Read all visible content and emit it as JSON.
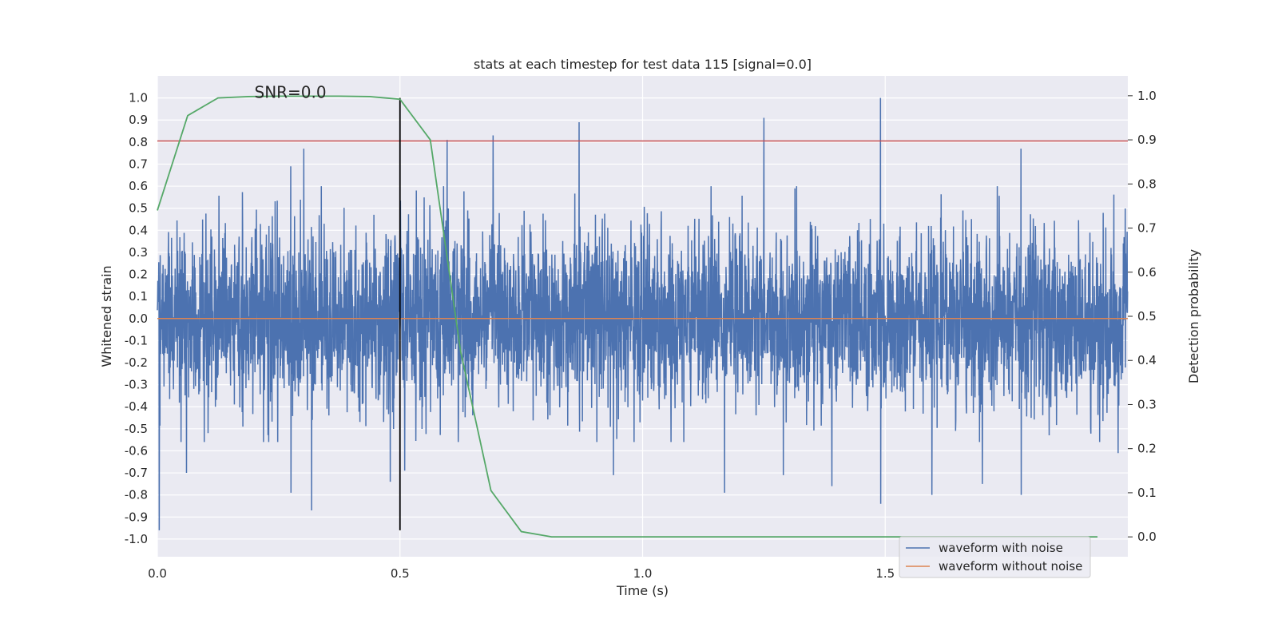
{
  "chart_data": {
    "type": "line",
    "title": "stats at each timestep for test data 115 [signal=0.0]",
    "xlabel": "Time (s)",
    "ylabel": "Whitened strain",
    "ylabel_right": "Detection probability",
    "xlim": [
      0.0,
      2.0
    ],
    "ylim": [
      -1.08,
      1.1
    ],
    "ylim_right": [
      -0.045,
      1.045
    ],
    "x_ticks": [
      0.0,
      0.5,
      1.0,
      1.5
    ],
    "x_tick_labels": [
      "0.0",
      "0.5",
      "1.0",
      "1.5"
    ],
    "y_ticks": [
      1.0,
      0.9,
      0.8,
      0.7,
      0.6,
      0.5,
      0.4,
      0.3,
      0.2,
      0.1,
      0.0,
      -0.1,
      -0.2,
      -0.3,
      -0.4,
      -0.5,
      -0.6,
      -0.7,
      -0.8,
      -0.9,
      -1.0
    ],
    "y_tick_labels": [
      "1.0",
      "0.9",
      "0.8",
      "0.7",
      "0.6",
      "0.5",
      "0.4",
      "0.3",
      "0.2",
      "0.1",
      "0.0",
      "-0.1",
      "-0.2",
      "-0.3",
      "-0.4",
      "-0.5",
      "-0.6",
      "-0.7",
      "-0.8",
      "-0.9",
      "-1.0"
    ],
    "y_ticks_right": [
      1.0,
      0.9,
      0.8,
      0.7,
      0.6,
      0.5,
      0.4,
      0.3,
      0.2,
      0.1,
      0.0
    ],
    "y_tick_labels_right": [
      "1.0",
      "0.9",
      "0.8",
      "0.7",
      "0.6",
      "0.5",
      "0.4",
      "0.3",
      "0.2",
      "0.1",
      "0.0"
    ],
    "grid": true,
    "legend_position": "bottom-right",
    "annotation": {
      "text": "SNR=0.0",
      "x": 0.2,
      "y": 1.0
    },
    "series": [
      {
        "name": "waveform with noise",
        "axis": "left",
        "color": "#4c72b0",
        "generation": {
          "sample_rate": 2048,
          "duration": 2.0,
          "noise_amplitude": 0.2,
          "seed": 115
        },
        "peaks": [
          {
            "x": 0.004,
            "y": -0.96
          },
          {
            "x": 0.06,
            "y": -0.7
          },
          {
            "x": 0.275,
            "y": 0.69
          },
          {
            "x": 0.275,
            "y": -0.79
          },
          {
            "x": 0.302,
            "y": 0.77
          },
          {
            "x": 0.318,
            "y": -0.87
          },
          {
            "x": 0.48,
            "y": -0.74
          },
          {
            "x": 0.51,
            "y": -0.69
          },
          {
            "x": 0.597,
            "y": 0.81
          },
          {
            "x": 0.692,
            "y": 0.83
          },
          {
            "x": 0.869,
            "y": 0.89
          },
          {
            "x": 0.94,
            "y": -0.71
          },
          {
            "x": 1.25,
            "y": 0.91
          },
          {
            "x": 1.169,
            "y": -0.79
          },
          {
            "x": 1.29,
            "y": -0.71
          },
          {
            "x": 1.39,
            "y": -0.76
          },
          {
            "x": 1.49,
            "y": 1.0
          },
          {
            "x": 1.49,
            "y": -0.84
          },
          {
            "x": 1.596,
            "y": -0.8
          },
          {
            "x": 1.7,
            "y": -0.75
          },
          {
            "x": 1.78,
            "y": 0.77
          },
          {
            "x": 1.78,
            "y": -0.8
          },
          {
            "x": 1.98,
            "y": -0.61
          }
        ]
      },
      {
        "name": "waveform without noise",
        "axis": "left",
        "color": "#dd8452",
        "x": [
          0.0,
          2.0
        ],
        "y": [
          0.0,
          0.0
        ]
      },
      {
        "name": "",
        "axis": "right",
        "color": "#55a868",
        "x": [
          0.0,
          0.0625,
          0.125,
          0.1875,
          0.25,
          0.3125,
          0.375,
          0.4375,
          0.5,
          0.5625,
          0.625,
          0.6875,
          0.75,
          0.8125,
          0.875,
          0.9375,
          1.0,
          1.0625,
          1.125,
          1.1875,
          1.25,
          1.3125,
          1.375,
          1.4375,
          1.5,
          1.5625,
          1.625,
          1.6875,
          1.75,
          1.8125,
          1.875,
          1.9375
        ],
        "y": [
          0.74,
          0.955,
          0.995,
          0.998,
          0.999,
          0.999,
          0.999,
          0.998,
          0.992,
          0.9,
          0.42,
          0.105,
          0.012,
          0.0,
          0.0,
          0.0,
          0.0,
          0.0,
          0.0,
          0.0,
          0.0,
          0.0,
          0.0,
          0.0,
          0.0,
          0.0,
          0.0,
          0.0,
          0.0,
          0.0,
          0.0,
          0.0
        ]
      }
    ],
    "threshold_line": {
      "axis": "left",
      "y": 0.805,
      "color": "#c44e52"
    },
    "marker_line": {
      "axis": "left",
      "x": 0.5,
      "y_range": [
        -0.96,
        1.0
      ],
      "color": "#000000"
    }
  }
}
